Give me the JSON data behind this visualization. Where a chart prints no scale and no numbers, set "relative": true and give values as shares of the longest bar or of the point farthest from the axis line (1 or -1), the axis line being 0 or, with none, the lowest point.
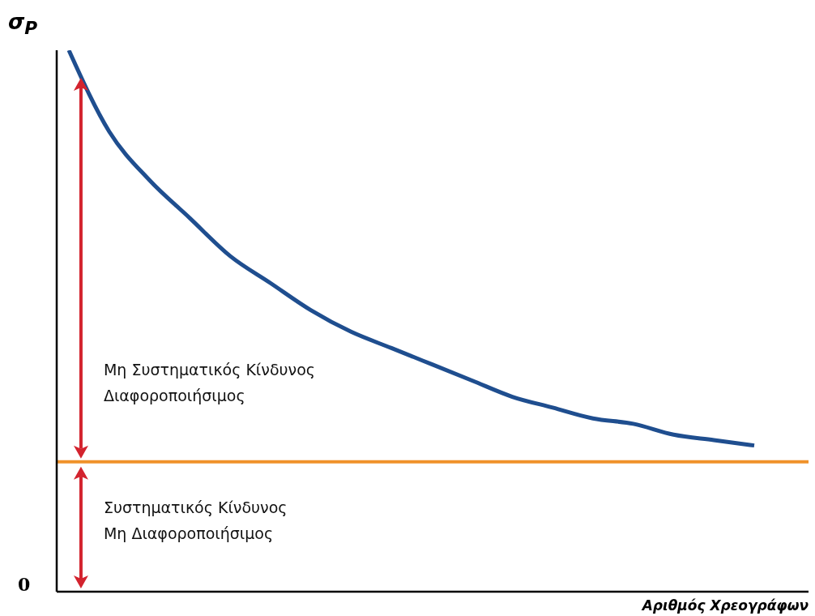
{
  "chart_data": {
    "type": "line",
    "relative": true,
    "xlabel": "Αριθμός Χρεογράφων",
    "ylabel": "σ$_{P}$",
    "categories": [
      null,
      null,
      null,
      null,
      null,
      null,
      null,
      null,
      null,
      null,
      null,
      null,
      null,
      null,
      null,
      null,
      null,
      null
    ],
    "series": [
      {
        "color": "#1f4e8f",
        "values": [
          1,
          0.85,
          0.76,
          0.69,
          0.62,
          0.57,
          0.52,
          0.48,
          0.45,
          0.42,
          0.39,
          0.36,
          0.34,
          0.32,
          0.31,
          0.29,
          0.28,
          0.27
        ]
      }
    ],
    "ref_lines": [
      {
        "axis": "y",
        "value": 0.24,
        "color": "#f0922a"
      }
    ],
    "annotations": [
      "0",
      "Μη Συστηματικός Κίνδυνος\nΔιαφοροποιήσιμος",
      "Συστηματικός Κίνδυνος\nΜη Διαφοροποιήσιμος"
    ],
    "grid": false,
    "legend": false,
    "marker": "none",
    "line_style": "solid"
  }
}
